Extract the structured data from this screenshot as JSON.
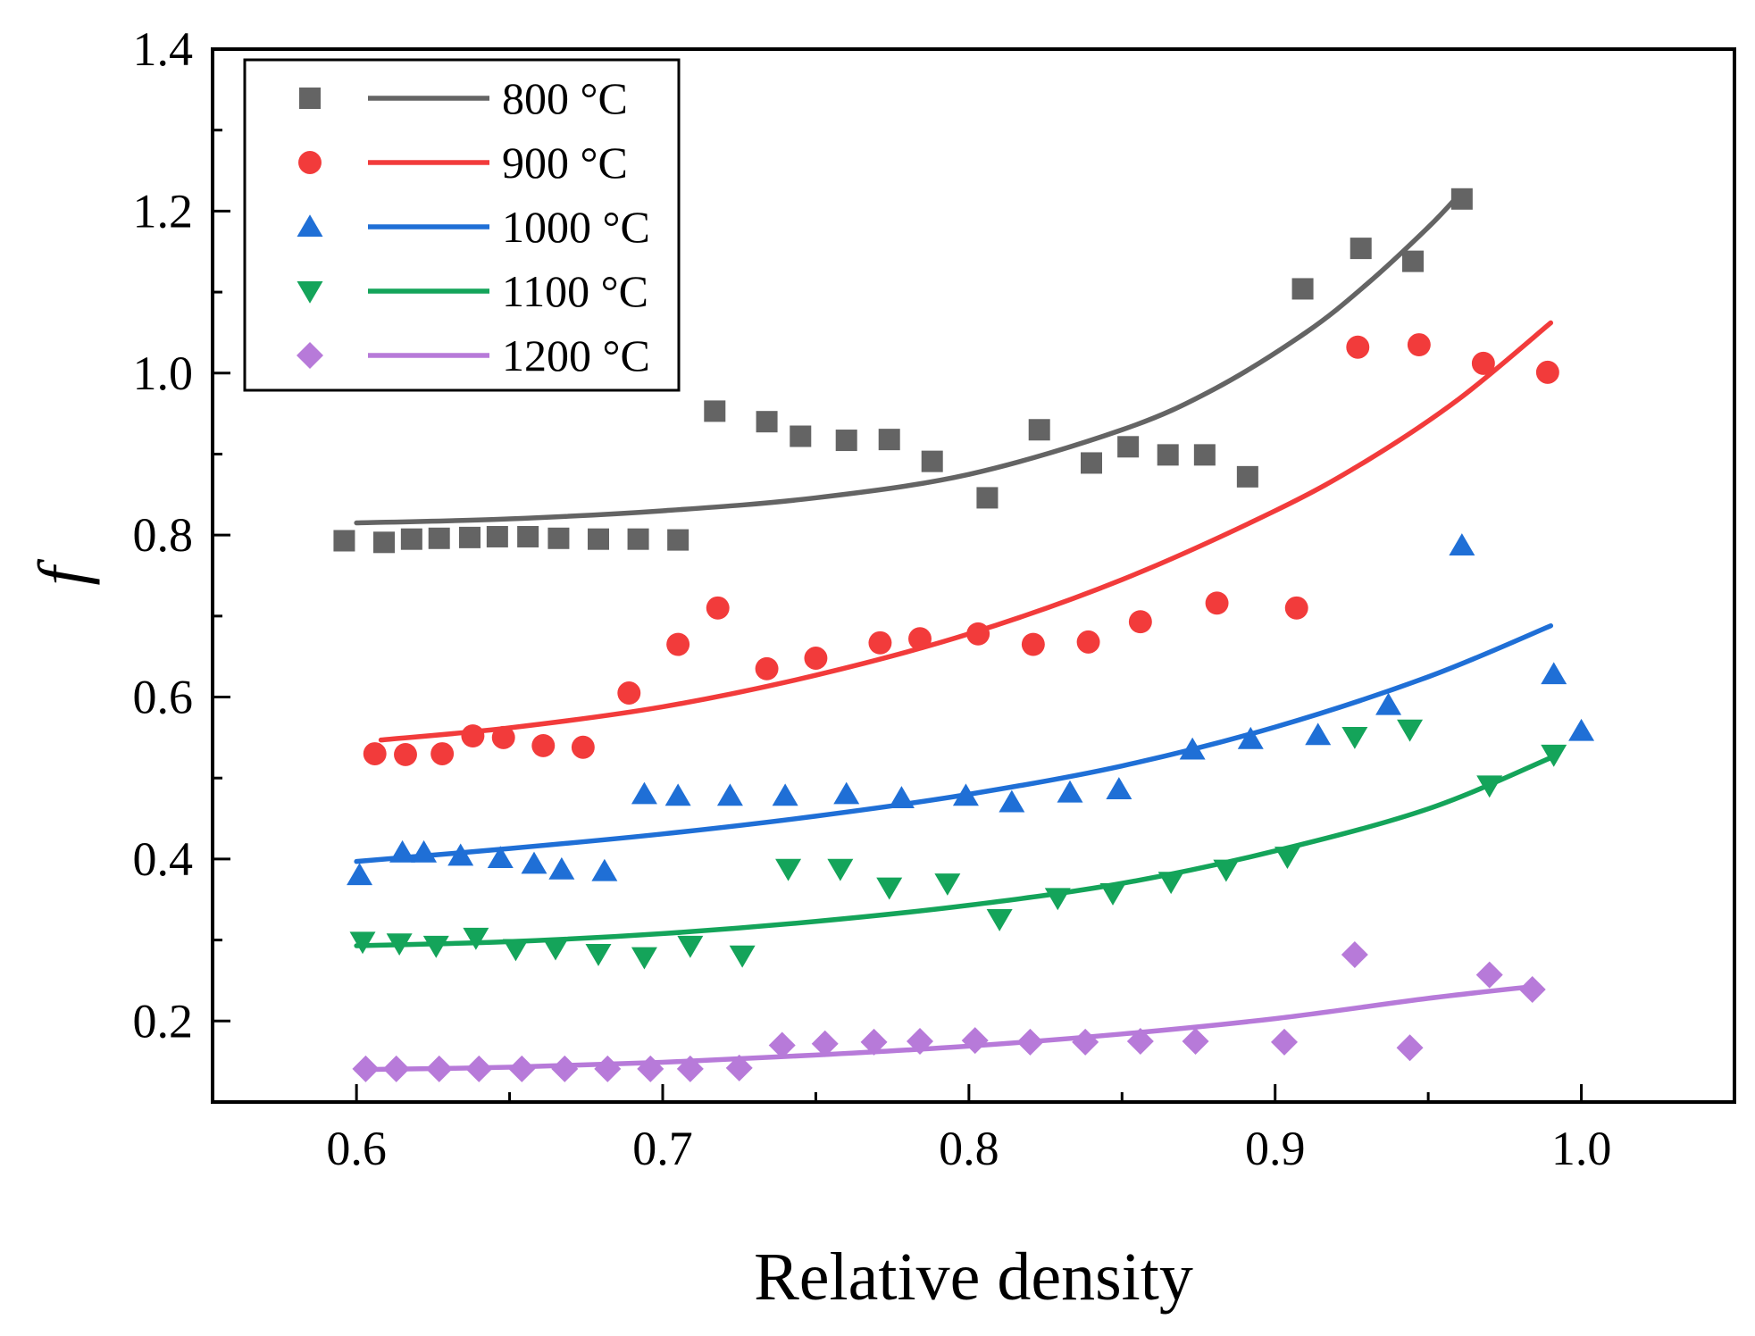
{
  "chart_data": {
    "type": "scatter",
    "title": "",
    "xlabel": "Relative density",
    "ylabel": "f",
    "xlim": [
      0.553,
      1.05
    ],
    "ylim": [
      0.1,
      1.4
    ],
    "xticks": [
      0.6,
      0.7,
      0.8,
      0.9,
      1.0
    ],
    "xtick_labels": [
      "0.6",
      "0.7",
      "0.8",
      "0.9",
      "1.0"
    ],
    "yticks": [
      0.2,
      0.4,
      0.6,
      0.8,
      1.0,
      1.2,
      1.4
    ],
    "ytick_labels": [
      "0.2",
      "0.4",
      "0.6",
      "0.8",
      "1.0",
      "1.2",
      "1.4"
    ],
    "grid": false,
    "legend_position": "top-left",
    "series": [
      {
        "name": "800 °C",
        "color": "#646464",
        "marker": "square",
        "x": [
          0.596,
          0.609,
          0.618,
          0.627,
          0.637,
          0.646,
          0.656,
          0.666,
          0.679,
          0.692,
          0.705,
          0.717,
          0.734,
          0.745,
          0.76,
          0.774,
          0.788,
          0.806,
          0.823,
          0.84,
          0.852,
          0.865,
          0.877,
          0.891,
          0.909,
          0.928,
          0.945,
          0.961
        ],
        "y": [
          0.793,
          0.791,
          0.795,
          0.796,
          0.797,
          0.798,
          0.798,
          0.796,
          0.795,
          0.795,
          0.794,
          0.953,
          0.94,
          0.922,
          0.917,
          0.918,
          0.891,
          0.846,
          0.93,
          0.889,
          0.909,
          0.899,
          0.899,
          0.872,
          1.104,
          1.154,
          1.138,
          1.215
        ],
        "fit_x": [
          0.6,
          0.65,
          0.7,
          0.75,
          0.8,
          0.85,
          0.88,
          0.91,
          0.93,
          0.95,
          0.96
        ],
        "fit_y": [
          0.815,
          0.82,
          0.83,
          0.846,
          0.875,
          0.93,
          0.98,
          1.05,
          1.11,
          1.18,
          1.22
        ]
      },
      {
        "name": "900 °C",
        "color": "#f23b3b",
        "marker": "circle",
        "x": [
          0.606,
          0.616,
          0.628,
          0.638,
          0.648,
          0.661,
          0.674,
          0.689,
          0.705,
          0.718,
          0.734,
          0.75,
          0.771,
          0.784,
          0.803,
          0.821,
          0.839,
          0.856,
          0.881,
          0.907,
          0.927,
          0.947,
          0.968,
          0.989
        ],
        "y": [
          0.53,
          0.529,
          0.53,
          0.552,
          0.55,
          0.54,
          0.538,
          0.605,
          0.665,
          0.71,
          0.635,
          0.648,
          0.667,
          0.672,
          0.678,
          0.665,
          0.668,
          0.693,
          0.716,
          0.71,
          1.032,
          1.035,
          1.012,
          1.001
        ],
        "fit_x": [
          0.608,
          0.65,
          0.7,
          0.75,
          0.8,
          0.85,
          0.9,
          0.93,
          0.96,
          0.99
        ],
        "fit_y": [
          0.547,
          0.562,
          0.588,
          0.627,
          0.678,
          0.745,
          0.83,
          0.892,
          0.968,
          1.062
        ]
      },
      {
        "name": "1000 °C",
        "color": "#1f6fd6",
        "marker": "triangle-up",
        "x": [
          0.601,
          0.615,
          0.622,
          0.634,
          0.647,
          0.658,
          0.667,
          0.681,
          0.694,
          0.705,
          0.722,
          0.74,
          0.76,
          0.778,
          0.799,
          0.814,
          0.833,
          0.849,
          0.873,
          0.892,
          0.914,
          0.937,
          0.961,
          0.991,
          1.0
        ],
        "y": [
          0.38,
          0.408,
          0.408,
          0.404,
          0.401,
          0.394,
          0.387,
          0.385,
          0.48,
          0.478,
          0.478,
          0.478,
          0.48,
          0.475,
          0.478,
          0.47,
          0.482,
          0.486,
          0.535,
          0.548,
          0.553,
          0.59,
          0.787,
          0.628,
          0.558
        ],
        "fit_x": [
          0.6,
          0.65,
          0.7,
          0.75,
          0.8,
          0.85,
          0.9,
          0.95,
          0.99
        ],
        "fit_y": [
          0.397,
          0.413,
          0.431,
          0.453,
          0.48,
          0.515,
          0.563,
          0.625,
          0.688
        ]
      },
      {
        "name": "1100 °C",
        "color": "#14a45a",
        "marker": "triangle-down",
        "x": [
          0.602,
          0.614,
          0.626,
          0.639,
          0.652,
          0.665,
          0.679,
          0.694,
          0.709,
          0.726,
          0.741,
          0.758,
          0.774,
          0.793,
          0.81,
          0.829,
          0.847,
          0.866,
          0.884,
          0.904,
          0.926,
          0.944,
          0.97,
          0.991
        ],
        "y": [
          0.298,
          0.296,
          0.293,
          0.303,
          0.289,
          0.29,
          0.283,
          0.279,
          0.293,
          0.281,
          0.388,
          0.388,
          0.365,
          0.37,
          0.326,
          0.352,
          0.358,
          0.372,
          0.387,
          0.403,
          0.551,
          0.56,
          0.491,
          0.529
        ],
        "fit_x": [
          0.6,
          0.65,
          0.7,
          0.75,
          0.8,
          0.85,
          0.9,
          0.95,
          0.99
        ],
        "fit_y": [
          0.293,
          0.298,
          0.308,
          0.323,
          0.343,
          0.37,
          0.41,
          0.462,
          0.525
        ]
      },
      {
        "name": "1200 °C",
        "color": "#b77ad9",
        "marker": "diamond",
        "x": [
          0.603,
          0.613,
          0.627,
          0.64,
          0.654,
          0.668,
          0.682,
          0.696,
          0.709,
          0.725,
          0.739,
          0.753,
          0.769,
          0.784,
          0.802,
          0.82,
          0.838,
          0.856,
          0.874,
          0.903,
          0.926,
          0.944,
          0.97,
          0.984
        ],
        "y": [
          0.141,
          0.141,
          0.141,
          0.141,
          0.141,
          0.141,
          0.141,
          0.141,
          0.141,
          0.142,
          0.17,
          0.172,
          0.174,
          0.175,
          0.176,
          0.174,
          0.174,
          0.175,
          0.175,
          0.174,
          0.282,
          0.167,
          0.257,
          0.239
        ],
        "fit_x": [
          0.6,
          0.65,
          0.7,
          0.75,
          0.8,
          0.85,
          0.9,
          0.95,
          0.985
        ],
        "fit_y": [
          0.14,
          0.143,
          0.149,
          0.158,
          0.169,
          0.184,
          0.203,
          0.228,
          0.243
        ]
      }
    ]
  }
}
